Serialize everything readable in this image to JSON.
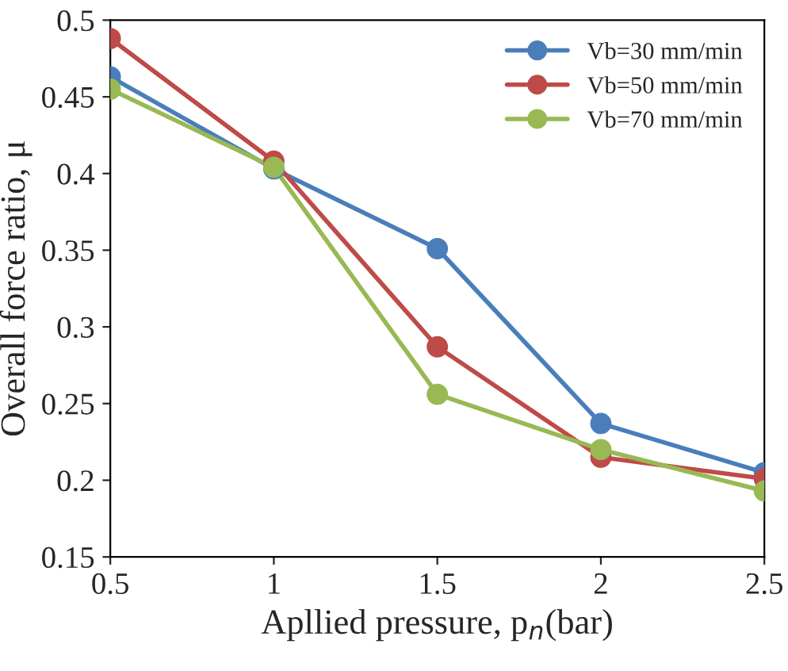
{
  "chart_data": {
    "type": "line",
    "xlabel": "Apllied pressure, p$_{n}$(bar)",
    "ylabel": "Overall force ratio, μ",
    "x": [
      0.5,
      1,
      1.5,
      2,
      2.5
    ],
    "series": [
      {
        "name": "Vb=30 mm/min",
        "color": "#4a7ebb",
        "values": [
          0.463,
          0.403,
          0.351,
          0.237,
          0.205
        ]
      },
      {
        "name": "Vb=50 mm/min",
        "color": "#be4b48",
        "values": [
          0.488,
          0.408,
          0.287,
          0.215,
          0.201
        ]
      },
      {
        "name": "Vb=70 mm/min",
        "color": "#98b954",
        "values": [
          0.455,
          0.404,
          0.256,
          0.22,
          0.193
        ]
      }
    ],
    "xlim": [
      0.5,
      2.5
    ],
    "xticks": [
      0.5,
      1,
      1.5,
      2,
      2.5
    ],
    "ylim": [
      0.15,
      0.5
    ],
    "yticks": [
      0.15,
      0.2,
      0.25,
      0.3,
      0.35,
      0.4,
      0.45,
      0.5
    ],
    "grid": false,
    "legend": "top right",
    "marker": "circle",
    "line_style": "solid"
  }
}
